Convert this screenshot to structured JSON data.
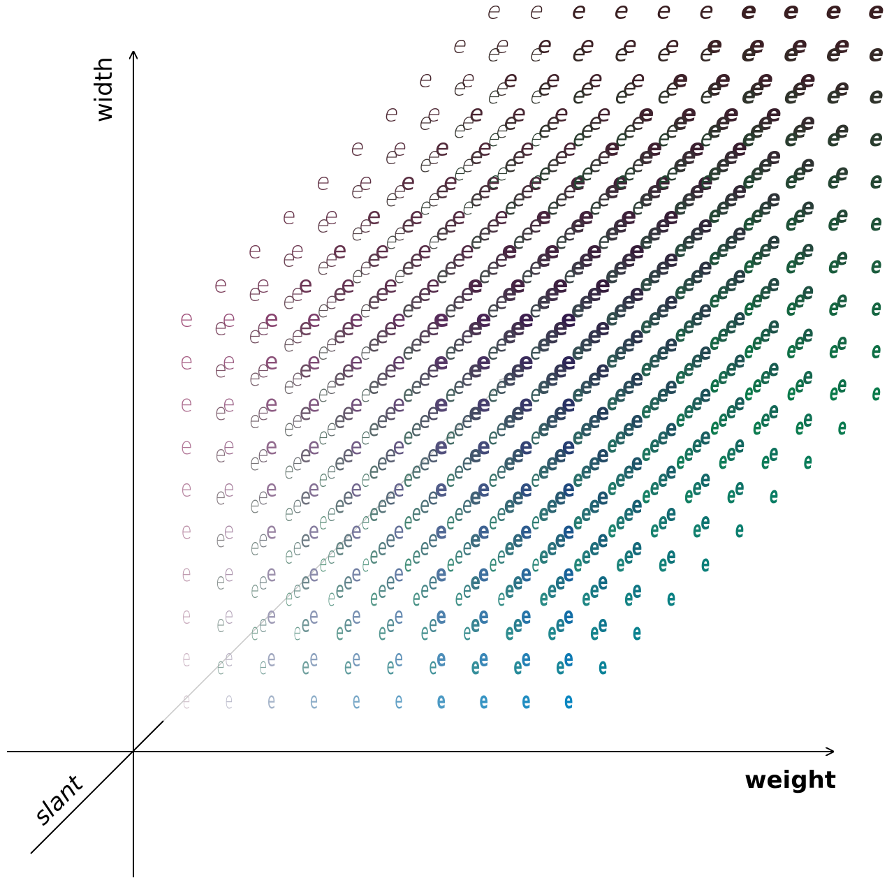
{
  "axes": {
    "weight_label": "weight",
    "width_label": "width",
    "slant_label": "slant"
  },
  "glyph": "e",
  "grid": {
    "weight_steps": 10,
    "width_steps": 10,
    "slant_steps": 10
  },
  "colors": {
    "base_start": "#d2c3cd",
    "base_end_weight": "#0a86c0",
    "base_end_width": "#a0507a",
    "deep_width_weight": "#321a4a",
    "slant_tint_green": "#0a7a4a",
    "slant_tint_brown": "#3a1f22"
  }
}
